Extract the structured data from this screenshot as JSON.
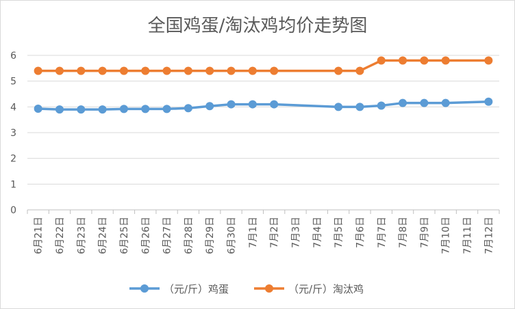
{
  "chart_data": {
    "type": "line",
    "title": "全国鸡蛋/淘汰鸡均价走势图",
    "categories": [
      "6月21日",
      "6月22日",
      "6月23日",
      "6月24日",
      "6月25日",
      "6月26日",
      "6月27日",
      "6月28日",
      "6月29日",
      "6月30日",
      "7月1日",
      "7月2日",
      "7月3日",
      "7月4日",
      "7月5日",
      "7月6日",
      "7月7日",
      "7月8日",
      "7月9日",
      "7月10日",
      "7月11日",
      "7月12日"
    ],
    "yticks": [
      "0",
      "1",
      "2",
      "3",
      "4",
      "5",
      "6"
    ],
    "ylim": [
      0,
      6
    ],
    "grid": true,
    "legend_position": "bottom",
    "series": [
      {
        "name": "（元/斤）鸡蛋",
        "color": "#5b9bd5",
        "values": [
          3.93,
          3.9,
          3.9,
          3.9,
          3.92,
          3.92,
          3.92,
          3.95,
          4.03,
          4.1,
          4.1,
          4.1,
          null,
          null,
          4.0,
          4.0,
          4.05,
          4.15,
          4.15,
          4.15,
          null,
          4.2
        ]
      },
      {
        "name": "（元/斤）淘汰鸡",
        "color": "#ed7d31",
        "values": [
          5.4,
          5.4,
          5.4,
          5.4,
          5.4,
          5.4,
          5.4,
          5.4,
          5.4,
          5.4,
          5.4,
          5.4,
          null,
          null,
          5.4,
          5.4,
          5.8,
          5.8,
          5.8,
          5.8,
          null,
          5.8
        ]
      }
    ]
  }
}
